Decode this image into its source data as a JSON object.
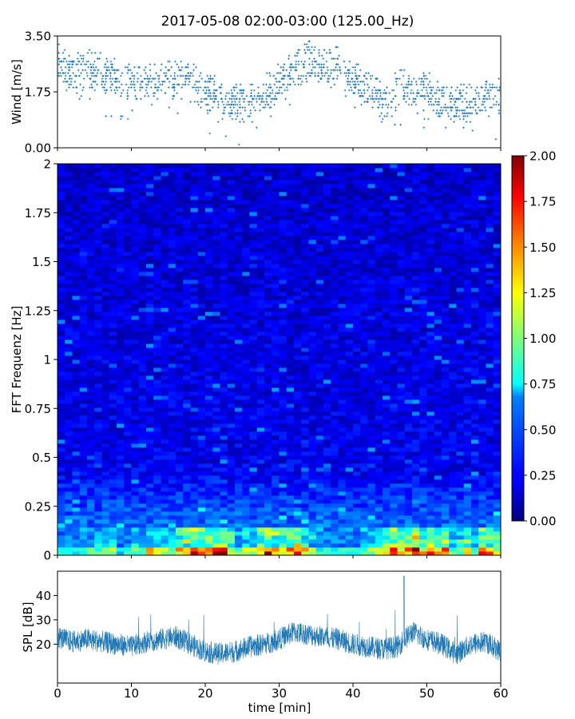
{
  "figure": {
    "title": "2017-05-08 02:00-03:00 (125.00_Hz)"
  },
  "chart_data": [
    {
      "panel": "wind",
      "type": "scatter",
      "ylabel": "Wind [m/s]",
      "xlabel": "",
      "xlim": [
        0,
        60
      ],
      "ylim": [
        0,
        3.5
      ],
      "yticks": [
        "0.00",
        "1.75",
        "3.50"
      ],
      "marker": "+",
      "color": "#1f77b4",
      "series": [
        {
          "x": [
            0,
            1,
            2,
            3,
            4,
            5,
            6,
            7,
            8,
            9,
            10,
            11,
            12,
            13,
            14,
            15,
            16,
            17,
            18,
            19,
            20,
            21,
            22,
            23,
            24,
            25,
            26,
            27,
            28,
            29,
            30,
            31,
            32,
            33,
            34,
            35,
            36,
            37,
            38,
            39,
            40,
            41,
            42,
            43,
            44,
            45,
            46,
            47,
            48,
            49,
            50,
            51,
            52,
            53,
            54,
            55,
            56,
            57,
            58,
            59,
            60
          ],
          "y": [
            2.6,
            2.4,
            2.3,
            2.4,
            2.5,
            2.4,
            2.3,
            2.3,
            2.2,
            2.1,
            2.0,
            2.0,
            1.9,
            2.0,
            2.1,
            2.1,
            2.2,
            2.1,
            2.0,
            1.9,
            1.8,
            1.7,
            1.6,
            1.5,
            1.4,
            1.4,
            1.5,
            1.6,
            1.6,
            1.8,
            2.0,
            2.2,
            2.4,
            2.6,
            2.7,
            2.6,
            2.4,
            2.5,
            2.6,
            2.3,
            2.1,
            2.0,
            1.8,
            1.6,
            1.5,
            1.6,
            1.8,
            1.9,
            1.7,
            1.7,
            1.8,
            1.6,
            1.5,
            1.4,
            1.4,
            1.3,
            1.5,
            1.4,
            1.6,
            1.6,
            1.7
          ]
        }
      ]
    },
    {
      "panel": "spectrogram",
      "type": "heatmap",
      "ylabel": "FFT Frequenz [Hz]",
      "xlabel": "",
      "xlim": [
        0,
        60
      ],
      "ylim": [
        0,
        2
      ],
      "yticks": [
        "0",
        "0.25",
        "0.5",
        "0.75",
        "1",
        "1.25",
        "1.5",
        "1.75",
        "2"
      ],
      "colormap": "jet",
      "colorbar": {
        "ticks": [
          "0.00",
          "0.25",
          "0.50",
          "0.75",
          "1.00",
          "1.25",
          "1.50",
          "1.75",
          "2.00"
        ],
        "min": 0,
        "max": 2
      },
      "description_values": {
        "time_min": [
          0,
          5,
          10,
          15,
          20,
          25,
          30,
          35,
          40,
          45,
          50,
          55,
          60
        ],
        "low_freq_intensity": [
          1.0,
          0.8,
          0.9,
          1.2,
          1.6,
          1.2,
          1.7,
          1.0,
          0.9,
          1.4,
          1.8,
          1.1,
          1.4
        ]
      }
    },
    {
      "panel": "spl",
      "type": "line",
      "ylabel": "SPL [dB]",
      "xlabel": "time [min]",
      "xlim": [
        0,
        60
      ],
      "ylim": [
        4,
        50
      ],
      "yticks": [
        "20",
        "30",
        "40"
      ],
      "xticks": [
        "0",
        "10",
        "20",
        "30",
        "40",
        "50",
        "60"
      ],
      "color": "#1f77b4",
      "series": [
        {
          "x": [
            0,
            2,
            4,
            6,
            8,
            10,
            12,
            14,
            16,
            18,
            20,
            22,
            24,
            26,
            28,
            30,
            32,
            34,
            36,
            38,
            40,
            42,
            44,
            46,
            47,
            48,
            50,
            52,
            54,
            56,
            58,
            60
          ],
          "y": [
            23,
            21,
            22,
            21,
            20,
            19,
            21,
            22,
            23,
            20,
            17,
            16,
            17,
            19,
            20,
            22,
            25,
            24,
            23,
            22,
            20,
            19,
            18,
            19,
            22,
            25,
            22,
            20,
            16,
            20,
            21,
            17
          ]
        }
      ]
    }
  ]
}
